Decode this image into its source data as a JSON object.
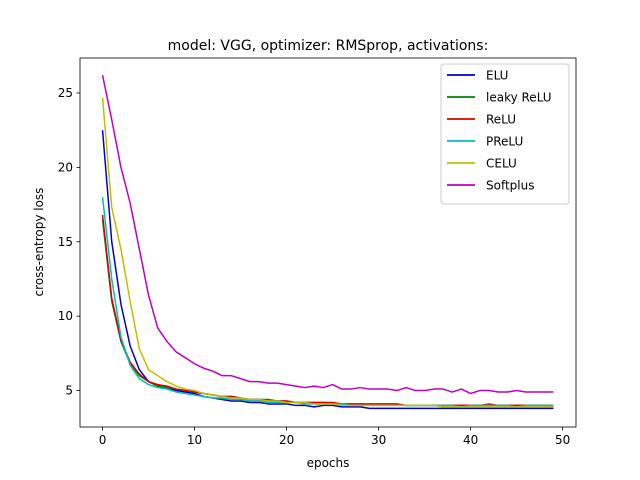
{
  "chart_data": {
    "type": "line",
    "title": "model: VGG, optimizer: RMSprop, activations:",
    "xlabel": "epochs",
    "ylabel": "cross-entropy loss",
    "xlim": [
      -2.45,
      51.45
    ],
    "ylim": [
      2.55,
      27.35
    ],
    "xticks": [
      0,
      10,
      20,
      30,
      40,
      50
    ],
    "yticks": [
      5,
      10,
      15,
      20,
      25
    ],
    "grid": false,
    "legend_position": "top-right",
    "series": [
      {
        "name": "ELU",
        "color": "#0000cc",
        "values": [
          22.5,
          15.0,
          10.8,
          8.0,
          6.4,
          5.6,
          5.3,
          5.2,
          5.0,
          4.9,
          4.8,
          4.6,
          4.5,
          4.4,
          4.3,
          4.3,
          4.2,
          4.2,
          4.1,
          4.1,
          4.1,
          4.0,
          4.0,
          3.9,
          4.0,
          4.0,
          3.9,
          3.9,
          3.9,
          3.8,
          3.8,
          3.8,
          3.8,
          3.8,
          3.8,
          3.8,
          3.8,
          3.8,
          3.8,
          3.8,
          3.8,
          3.8,
          3.8,
          3.8,
          3.8,
          3.8,
          3.8,
          3.8,
          3.8,
          3.8
        ]
      },
      {
        "name": "leaky ReLU",
        "color": "#008000",
        "values": [
          16.5,
          11.0,
          8.3,
          6.8,
          6.0,
          5.6,
          5.3,
          5.2,
          5.1,
          5.0,
          4.9,
          4.8,
          4.7,
          4.6,
          4.6,
          4.5,
          4.4,
          4.4,
          4.4,
          4.3,
          4.3,
          4.2,
          4.2,
          4.2,
          4.2,
          4.1,
          4.1,
          4.1,
          4.1,
          4.1,
          4.1,
          4.1,
          4.1,
          4.0,
          4.0,
          4.0,
          4.0,
          4.0,
          4.0,
          4.0,
          4.0,
          4.0,
          4.0,
          4.0,
          4.0,
          4.0,
          4.0,
          4.0,
          4.0,
          4.0
        ]
      },
      {
        "name": "ReLU",
        "color": "#dd0000",
        "values": [
          16.8,
          11.2,
          8.4,
          6.9,
          6.1,
          5.6,
          5.4,
          5.3,
          5.1,
          5.0,
          4.9,
          4.8,
          4.7,
          4.6,
          4.6,
          4.5,
          4.4,
          4.4,
          4.3,
          4.3,
          4.3,
          4.2,
          4.2,
          4.2,
          4.2,
          4.2,
          4.1,
          4.1,
          4.1,
          4.1,
          4.1,
          4.1,
          4.1,
          4.0,
          4.0,
          4.0,
          4.0,
          4.0,
          4.0,
          4.0,
          4.0,
          4.0,
          4.1,
          4.0,
          4.0,
          4.0,
          4.0,
          4.0,
          4.0,
          3.9
        ]
      },
      {
        "name": "PReLU",
        "color": "#00bfbf",
        "values": [
          18.0,
          12.5,
          8.6,
          6.7,
          5.8,
          5.4,
          5.2,
          5.1,
          4.9,
          4.8,
          4.7,
          4.6,
          4.5,
          4.5,
          4.4,
          4.4,
          4.3,
          4.3,
          4.2,
          4.2,
          4.2,
          4.2,
          4.1,
          4.1,
          4.1,
          4.1,
          4.1,
          4.0,
          4.0,
          4.0,
          4.0,
          4.0,
          4.0,
          4.0,
          4.0,
          4.0,
          4.0,
          4.0,
          4.0,
          3.9,
          4.0,
          4.0,
          4.0,
          4.0,
          4.0,
          3.9,
          4.0,
          4.0,
          4.0,
          4.0
        ]
      },
      {
        "name": "CELU",
        "color": "#bfbf00",
        "values": [
          24.7,
          17.3,
          14.5,
          11.0,
          7.8,
          6.4,
          6.0,
          5.6,
          5.3,
          5.1,
          5.0,
          4.8,
          4.7,
          4.6,
          4.5,
          4.5,
          4.4,
          4.4,
          4.3,
          4.3,
          4.2,
          4.2,
          4.2,
          4.1,
          4.1,
          4.1,
          4.0,
          4.0,
          4.0,
          4.0,
          4.0,
          4.0,
          4.0,
          4.0,
          4.0,
          4.0,
          4.0,
          3.9,
          3.9,
          3.9,
          3.9,
          3.9,
          3.9,
          3.9,
          3.9,
          3.9,
          3.9,
          3.9,
          3.9,
          3.9
        ]
      },
      {
        "name": "Softplus",
        "color": "#bf00bf",
        "values": [
          26.2,
          23.2,
          20.0,
          17.6,
          14.5,
          11.4,
          9.2,
          8.3,
          7.6,
          7.2,
          6.8,
          6.5,
          6.3,
          6.0,
          6.0,
          5.8,
          5.6,
          5.6,
          5.5,
          5.5,
          5.4,
          5.3,
          5.2,
          5.3,
          5.2,
          5.4,
          5.1,
          5.1,
          5.2,
          5.1,
          5.1,
          5.1,
          5.0,
          5.2,
          5.0,
          5.0,
          5.1,
          5.1,
          4.9,
          5.1,
          4.8,
          5.0,
          5.0,
          4.9,
          4.9,
          5.0,
          4.9,
          4.9,
          4.9,
          4.9
        ]
      }
    ]
  }
}
